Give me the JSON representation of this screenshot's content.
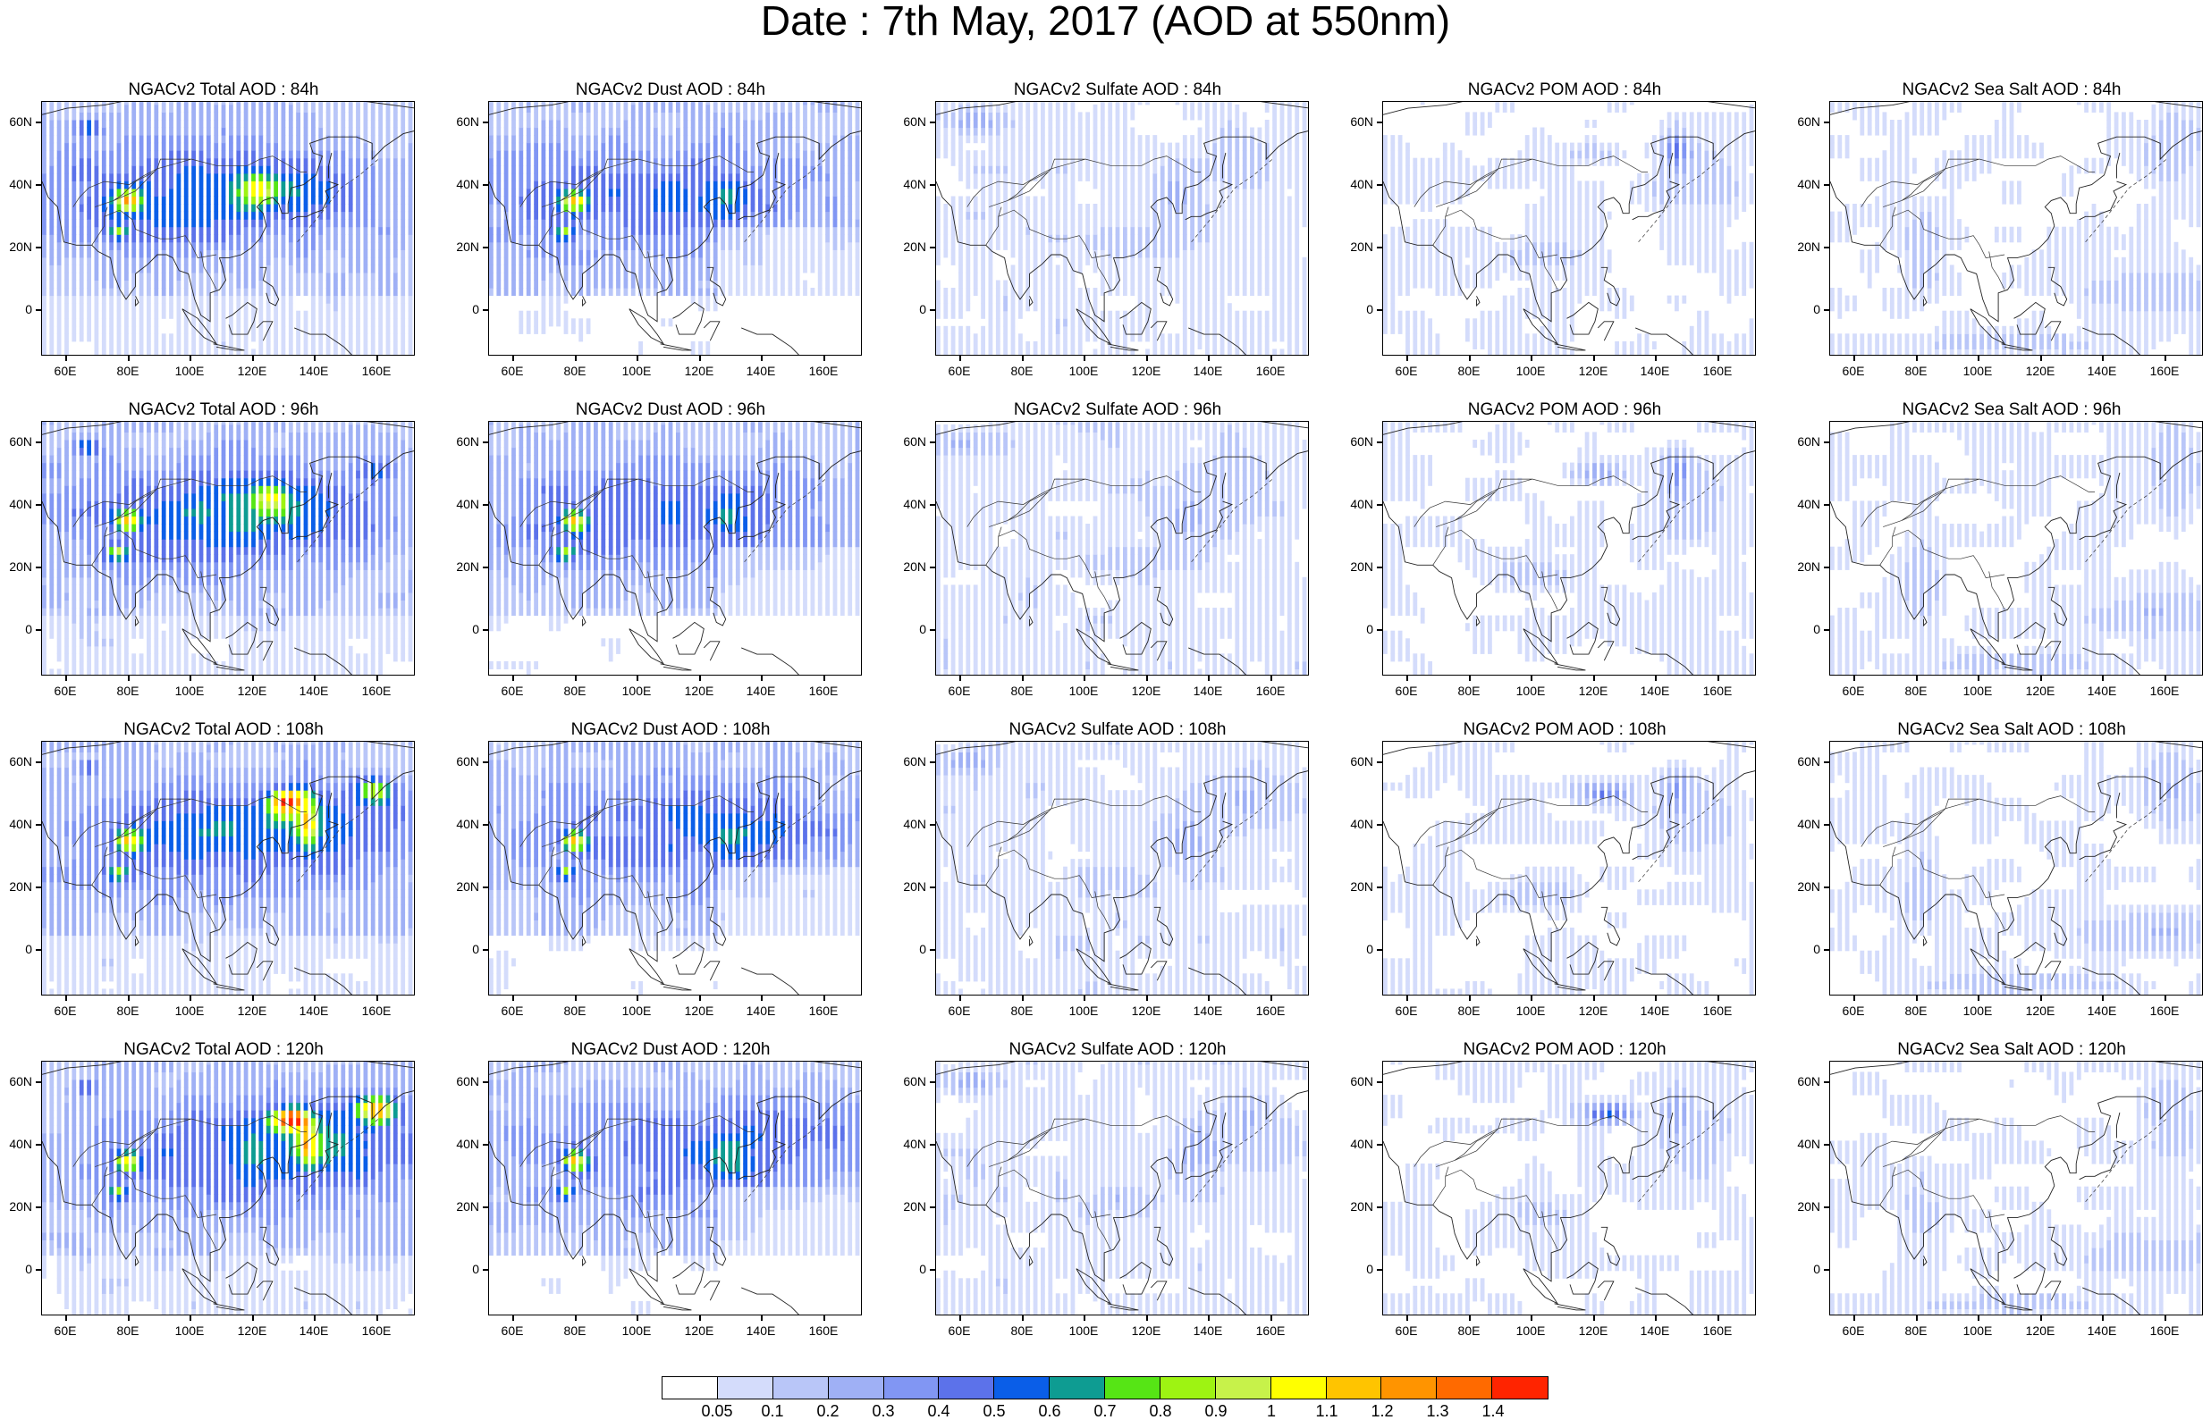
{
  "title": "Date : 7th May, 2017 (AOD at 550nm)",
  "lat_labels": [
    "60N",
    "40N",
    "20N",
    "0"
  ],
  "lon_labels": [
    "60E",
    "80E",
    "100E",
    "120E",
    "140E",
    "160E"
  ],
  "rows": [
    [
      "NGACv2 Total AOD : 84h",
      "NGACv2 Dust AOD : 84h",
      "NGACv2 Sulfate AOD : 84h",
      "NGACv2 POM AOD : 84h",
      "NGACv2 Sea Salt AOD : 84h"
    ],
    [
      "NGACv2 Total AOD : 96h",
      "NGACv2 Dust AOD : 96h",
      "NGACv2 Sulfate AOD : 96h",
      "NGACv2 POM AOD : 96h",
      "NGACv2 Sea Salt AOD : 96h"
    ],
    [
      "NGACv2 Total AOD : 108h",
      "NGACv2 Dust AOD : 108h",
      "NGACv2 Sulfate AOD : 108h",
      "NGACv2 POM AOD : 108h",
      "NGACv2 Sea Salt AOD : 108h"
    ],
    [
      "NGACv2 Total AOD : 120h",
      "NGACv2 Dust AOD : 120h",
      "NGACv2 Sulfate AOD : 120h",
      "NGACv2 POM AOD : 120h",
      "NGACv2 Sea Salt  AOD : 120h"
    ]
  ],
  "colorbar": {
    "labels": [
      "0.05",
      "0.1",
      "0.2",
      "0.3",
      "0.4",
      "0.5",
      "0.6",
      "0.7",
      "0.8",
      "0.9",
      "1",
      "1.1",
      "1.2",
      "1.3",
      "1.4"
    ],
    "colors": [
      "#ffffff",
      "#d4dcfb",
      "#b9c6f8",
      "#9fb0f5",
      "#8196f3",
      "#5c72ea",
      "#0a5ee8",
      "#0e9c92",
      "#56e515",
      "#9ef312",
      "#c7f24a",
      "#ffff00",
      "#ffc400",
      "#ff9400",
      "#ff6a00",
      "#ff2400"
    ]
  }
}
